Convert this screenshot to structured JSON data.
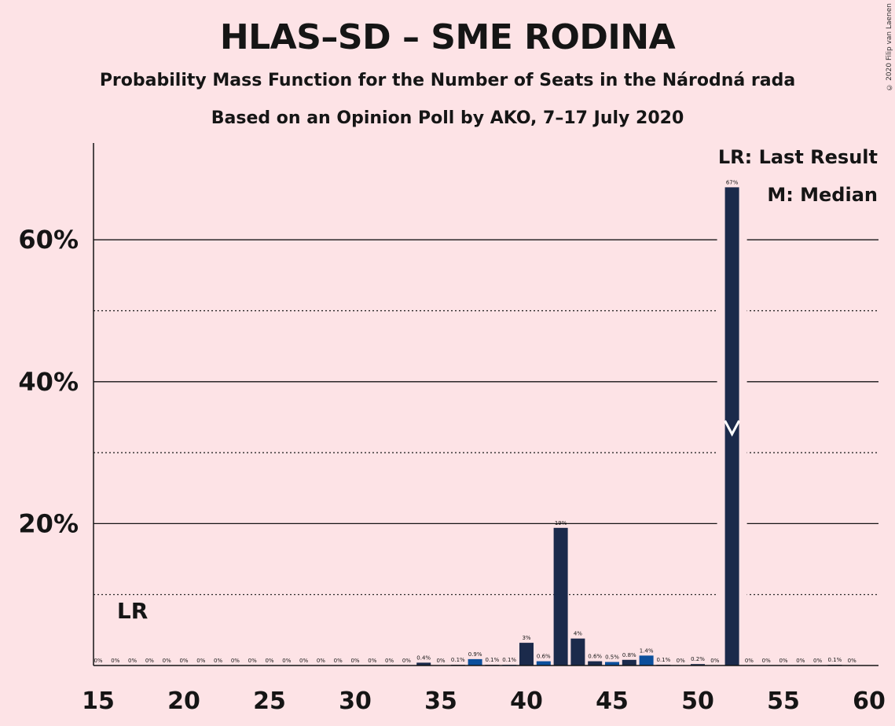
{
  "title": "HLAS–SD – SME RODINA",
  "subtitle1": "Probability Mass Function for the Number of Seats in the Národná rada",
  "subtitle2": "Based on an Opinion Poll by AKO, 7–17 July 2020",
  "copyright": "© 2020 Filip van Laenen",
  "legend": {
    "last_result": "LR: Last Result",
    "median": "M: Median"
  },
  "markers": {
    "last_result_label": "LR",
    "last_result_seats": 17,
    "median_seats": 52
  },
  "colors": {
    "background": "#fde3e6",
    "bar_dark": "#1b2a4b",
    "bar_blue": "#0b4f9c",
    "text": "#151515"
  },
  "chart_data": {
    "type": "bar",
    "xlim": [
      15,
      60
    ],
    "ylim": [
      0,
      70
    ],
    "x_ticks": [
      15,
      20,
      25,
      30,
      35,
      40,
      45,
      50,
      55,
      60
    ],
    "y_ticks": [
      {
        "value": 20,
        "label": "20%"
      },
      {
        "value": 40,
        "label": "40%"
      },
      {
        "value": 60,
        "label": "60%"
      }
    ],
    "y_minor_gridlines": [
      10,
      30,
      50
    ],
    "seats": [
      15,
      16,
      17,
      18,
      19,
      20,
      21,
      22,
      23,
      24,
      25,
      26,
      27,
      28,
      29,
      30,
      31,
      32,
      33,
      34,
      35,
      36,
      37,
      38,
      39,
      40,
      41,
      42,
      43,
      44,
      45,
      46,
      47,
      48,
      49,
      50,
      51,
      52,
      53,
      54,
      55,
      56,
      57,
      58,
      59
    ],
    "values": [
      0,
      0,
      0,
      0,
      0,
      0,
      0,
      0,
      0,
      0,
      0,
      0,
      0,
      0,
      0,
      0,
      0,
      0,
      0,
      0.4,
      0,
      0.1,
      0.9,
      0.1,
      0.1,
      3.2,
      0.6,
      19.4,
      3.8,
      0.6,
      0.5,
      0.8,
      1.4,
      0.1,
      0,
      0.2,
      0,
      67.4,
      0,
      0,
      0,
      0,
      0,
      0.1,
      0
    ],
    "labels": [
      "0%",
      "0%",
      "0%",
      "0%",
      "0%",
      "0%",
      "0%",
      "0%",
      "0%",
      "0%",
      "0%",
      "0%",
      "0%",
      "0%",
      "0%",
      "0%",
      "0%",
      "0%",
      "0%",
      "0.4%",
      "0%",
      "0.1%",
      "0.9%",
      "0.1%",
      "0.1%",
      "3%",
      "0.6%",
      "19%",
      "4%",
      "0.6%",
      "0.5%",
      "0.8%",
      "1.4%",
      "0.1%",
      "0%",
      "0.2%",
      "0%",
      "67%",
      "0%",
      "0%",
      "0%",
      "0%",
      "0%",
      "0.1%",
      "0%"
    ]
  }
}
